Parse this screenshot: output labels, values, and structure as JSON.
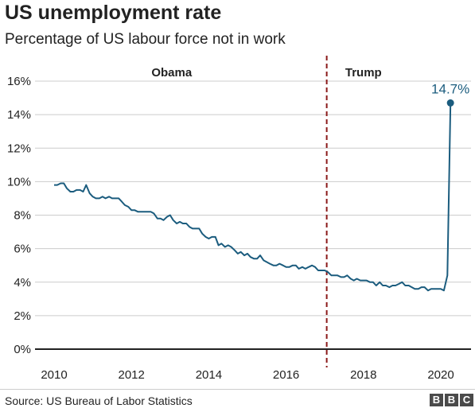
{
  "header": {
    "title": "US unemployment rate",
    "subtitle": "Percentage of US labour force not in work"
  },
  "footer": {
    "source": "Source: US Bureau of Labor Statistics",
    "logo": [
      "B",
      "B",
      "C"
    ]
  },
  "colors": {
    "line": "#1b5c7e",
    "divider_line": "#8b1a1a",
    "grid": "#cccccc",
    "baseline": "#222222"
  },
  "chart_data": {
    "type": "line",
    "xlim": [
      2010,
      2020.75
    ],
    "ylim": [
      0,
      16
    ],
    "xticks": [
      2010,
      2012,
      2014,
      2016,
      2018,
      2020
    ],
    "xtick_labels": [
      "2010",
      "2012",
      "2014",
      "2016",
      "2018",
      "2020"
    ],
    "yticks": [
      0,
      2,
      4,
      6,
      8,
      10,
      12,
      14,
      16
    ],
    "ytick_labels": [
      "0%",
      "2%",
      "4%",
      "6%",
      "8%",
      "10%",
      "12%",
      "14%",
      "16%"
    ],
    "grid": true,
    "eras": [
      {
        "label": "Obama",
        "x": 2013.04
      },
      {
        "label": "Trump",
        "x": 2018.0
      }
    ],
    "divider_x": 2017.05,
    "annotation": {
      "text": "14.7%",
      "x": 2020.25,
      "y": 14.7
    },
    "series": [
      {
        "x": [
          2010.0,
          2010.08,
          2010.17,
          2010.25,
          2010.33,
          2010.42,
          2010.5,
          2010.58,
          2010.67,
          2010.75,
          2010.83,
          2010.92,
          2011.0,
          2011.08,
          2011.17,
          2011.25,
          2011.33,
          2011.42,
          2011.5,
          2011.58,
          2011.67,
          2011.75,
          2011.83,
          2011.92,
          2012.0,
          2012.08,
          2012.17,
          2012.25,
          2012.33,
          2012.42,
          2012.5,
          2012.58,
          2012.67,
          2012.75,
          2012.83,
          2012.92,
          2013.0,
          2013.08,
          2013.17,
          2013.25,
          2013.33,
          2013.42,
          2013.5,
          2013.58,
          2013.67,
          2013.75,
          2013.83,
          2013.92,
          2014.0,
          2014.08,
          2014.17,
          2014.25,
          2014.33,
          2014.42,
          2014.5,
          2014.58,
          2014.67,
          2014.75,
          2014.83,
          2014.92,
          2015.0,
          2015.08,
          2015.17,
          2015.25,
          2015.33,
          2015.42,
          2015.5,
          2015.58,
          2015.67,
          2015.75,
          2015.83,
          2015.92,
          2016.0,
          2016.08,
          2016.17,
          2016.25,
          2016.33,
          2016.42,
          2016.5,
          2016.58,
          2016.67,
          2016.75,
          2016.83,
          2016.92,
          2017.0,
          2017.08,
          2017.17,
          2017.25,
          2017.33,
          2017.42,
          2017.5,
          2017.58,
          2017.67,
          2017.75,
          2017.83,
          2017.92,
          2018.0,
          2018.08,
          2018.17,
          2018.25,
          2018.33,
          2018.42,
          2018.5,
          2018.58,
          2018.67,
          2018.75,
          2018.83,
          2018.92,
          2019.0,
          2019.08,
          2019.17,
          2019.25,
          2019.33,
          2019.42,
          2019.5,
          2019.58,
          2019.67,
          2019.75,
          2019.83,
          2019.92,
          2020.0,
          2020.08,
          2020.17,
          2020.25
        ],
        "y": [
          9.8,
          9.8,
          9.9,
          9.9,
          9.6,
          9.4,
          9.4,
          9.5,
          9.5,
          9.4,
          9.8,
          9.3,
          9.1,
          9.0,
          9.0,
          9.1,
          9.0,
          9.1,
          9.0,
          9.0,
          9.0,
          8.8,
          8.6,
          8.5,
          8.3,
          8.3,
          8.2,
          8.2,
          8.2,
          8.2,
          8.2,
          8.1,
          7.8,
          7.8,
          7.7,
          7.9,
          8.0,
          7.7,
          7.5,
          7.6,
          7.5,
          7.5,
          7.3,
          7.2,
          7.2,
          7.2,
          6.9,
          6.7,
          6.6,
          6.7,
          6.7,
          6.2,
          6.3,
          6.1,
          6.2,
          6.1,
          5.9,
          5.7,
          5.8,
          5.6,
          5.7,
          5.5,
          5.4,
          5.4,
          5.6,
          5.3,
          5.2,
          5.1,
          5.0,
          5.0,
          5.1,
          5.0,
          4.9,
          4.9,
          5.0,
          5.0,
          4.8,
          4.9,
          4.8,
          4.9,
          5.0,
          4.9,
          4.7,
          4.7,
          4.7,
          4.6,
          4.4,
          4.4,
          4.4,
          4.3,
          4.3,
          4.4,
          4.2,
          4.1,
          4.2,
          4.1,
          4.1,
          4.1,
          4.0,
          4.0,
          3.8,
          4.0,
          3.8,
          3.8,
          3.7,
          3.8,
          3.8,
          3.9,
          4.0,
          3.8,
          3.8,
          3.7,
          3.6,
          3.6,
          3.7,
          3.7,
          3.5,
          3.6,
          3.6,
          3.6,
          3.6,
          3.5,
          4.4,
          14.7
        ]
      }
    ]
  }
}
